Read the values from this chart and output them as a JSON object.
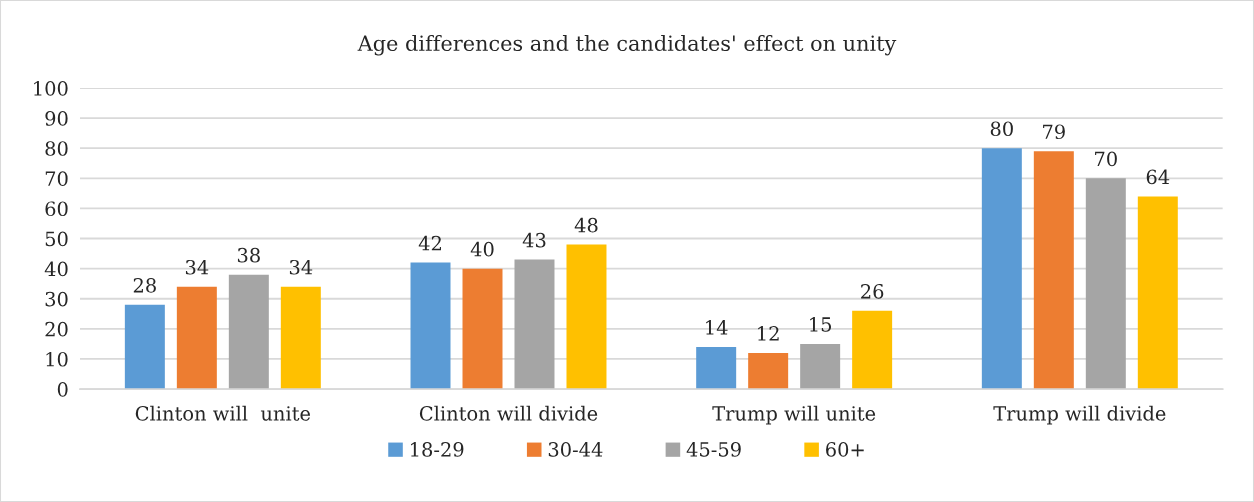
{
  "chart_data": {
    "type": "bar",
    "title": "Age differences and the candidates' effect on unity",
    "categories": [
      "Clinton will  unite",
      "Clinton will divide",
      "Trump will unite",
      "Trump will divide"
    ],
    "series": [
      {
        "name": "18-29",
        "color": "#5b9bd5",
        "values": [
          28,
          42,
          14,
          80
        ]
      },
      {
        "name": "30-44",
        "color": "#ed7d31",
        "values": [
          34,
          40,
          12,
          79
        ]
      },
      {
        "name": "45-59",
        "color": "#a5a5a5",
        "values": [
          38,
          43,
          15,
          70
        ]
      },
      {
        "name": "60+",
        "color": "#ffc000",
        "values": [
          34,
          48,
          26,
          64
        ]
      }
    ],
    "ylim": [
      0,
      100
    ],
    "yticks": [
      0,
      10,
      20,
      30,
      40,
      50,
      60,
      70,
      80,
      90,
      100
    ],
    "grid": "y",
    "legend": "bottom",
    "data_labels": true
  }
}
